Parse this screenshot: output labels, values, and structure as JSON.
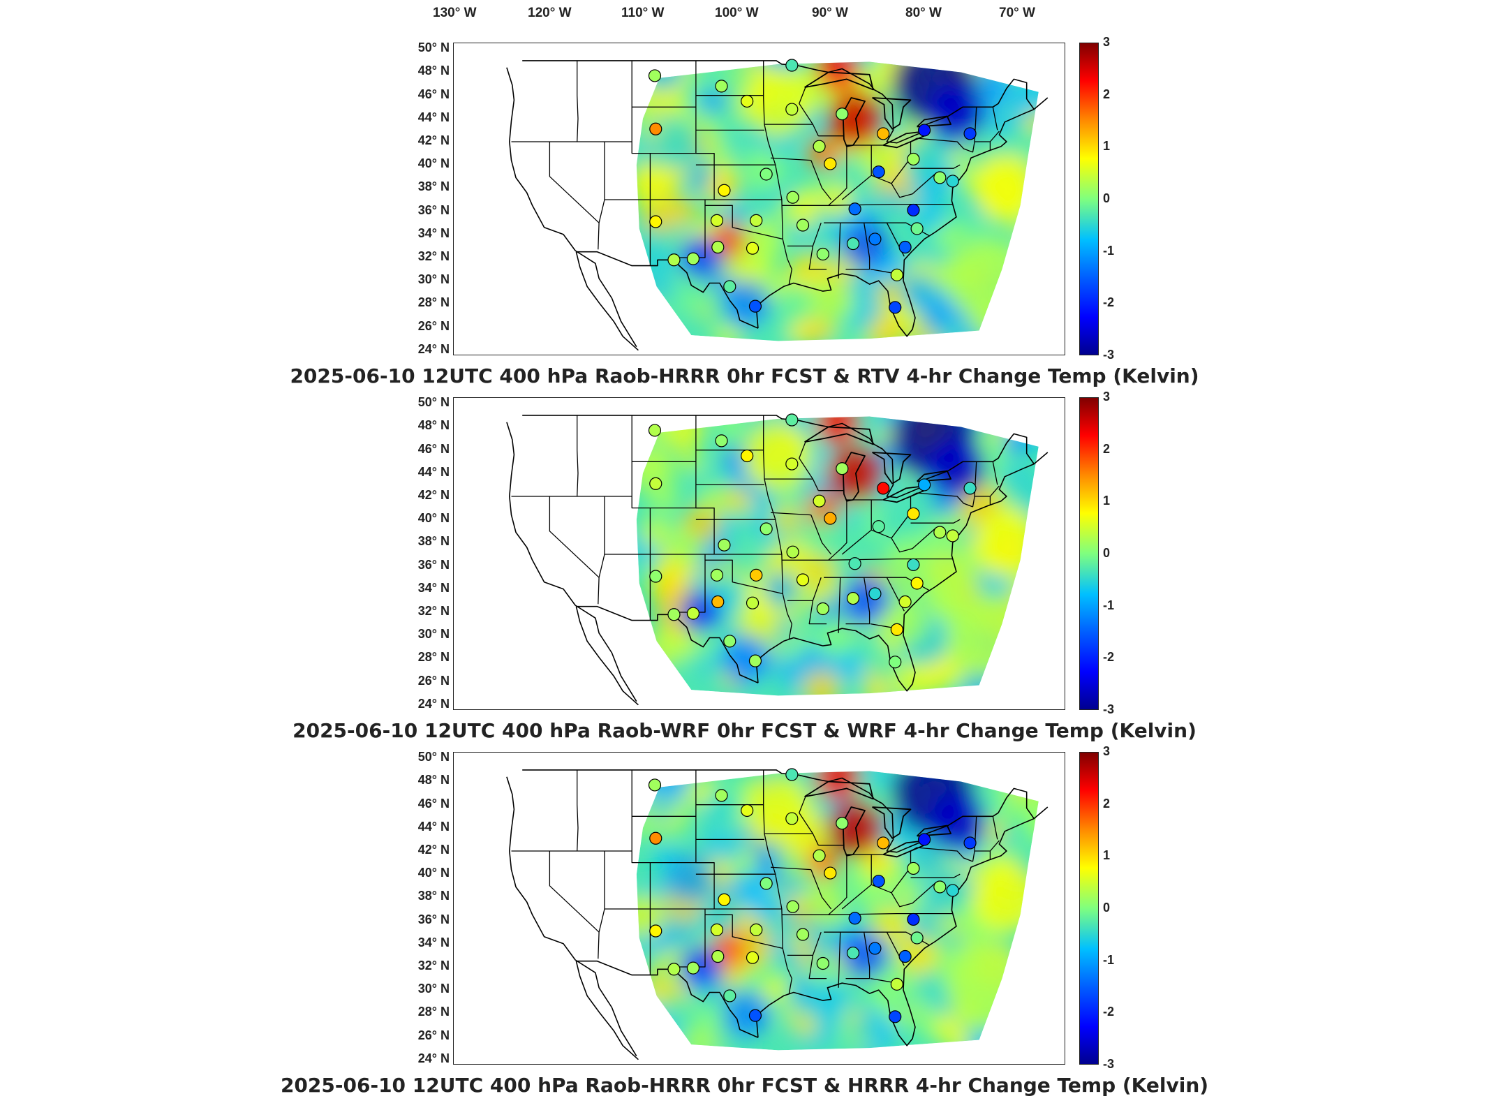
{
  "longitude_labels": [
    "130° W",
    "120° W",
    "110° W",
    "100° W",
    "90° W",
    "80° W",
    "70° W"
  ],
  "latitude_labels": [
    "50° N",
    "48° N",
    "46° N",
    "44° N",
    "42° N",
    "40° N",
    "38° N",
    "36° N",
    "34° N",
    "32° N",
    "30° N",
    "28° N",
    "26° N",
    "24° N"
  ],
  "colorbar_ticks": [
    "3",
    "2",
    "1",
    "0",
    "-1",
    "-2",
    "-3"
  ],
  "colormap": [
    "#800000",
    "#ff0000",
    "#ff8c00",
    "#ffff00",
    "#7fff7f",
    "#00c0ff",
    "#0060ff",
    "#0000ff",
    "#00008f"
  ],
  "panels": [
    {
      "title": "2025-06-10 12UTC 400 hPa Raob-HRRR 0hr FCST & RTV 4-hr Change Temp (Kelvin)",
      "stations": [
        {
          "lon": -108.5,
          "lat": 47.7,
          "value": 0.2
        },
        {
          "lon": -101.2,
          "lat": 46.8,
          "value": 0.2
        },
        {
          "lon": -98.4,
          "lat": 45.5,
          "value": 0.6
        },
        {
          "lon": -93.5,
          "lat": 48.6,
          "value": -0.3
        },
        {
          "lon": -93.5,
          "lat": 44.8,
          "value": 0.4
        },
        {
          "lon": -108.4,
          "lat": 43.1,
          "value": 1.5
        },
        {
          "lon": -88.0,
          "lat": 44.4,
          "value": 0.1
        },
        {
          "lon": -83.5,
          "lat": 42.7,
          "value": 1.2
        },
        {
          "lon": -79.0,
          "lat": 43.0,
          "value": -2.1
        },
        {
          "lon": -74.0,
          "lat": 42.7,
          "value": -1.8
        },
        {
          "lon": -90.5,
          "lat": 41.6,
          "value": 0.3
        },
        {
          "lon": -89.3,
          "lat": 40.1,
          "value": 0.9
        },
        {
          "lon": -84.0,
          "lat": 39.4,
          "value": -1.6
        },
        {
          "lon": -80.2,
          "lat": 40.5,
          "value": 0.2
        },
        {
          "lon": -77.3,
          "lat": 38.9,
          "value": 0.1
        },
        {
          "lon": -96.3,
          "lat": 39.2,
          "value": 0.0
        },
        {
          "lon": -100.9,
          "lat": 37.8,
          "value": 0.8
        },
        {
          "lon": -93.4,
          "lat": 37.2,
          "value": 0.2
        },
        {
          "lon": -86.6,
          "lat": 36.2,
          "value": -1.4
        },
        {
          "lon": -80.2,
          "lat": 36.1,
          "value": -1.9
        },
        {
          "lon": -108.4,
          "lat": 35.1,
          "value": 0.8
        },
        {
          "lon": -97.4,
          "lat": 35.2,
          "value": 0.4
        },
        {
          "lon": -101.7,
          "lat": 35.2,
          "value": 0.5
        },
        {
          "lon": -92.3,
          "lat": 34.8,
          "value": 0.2
        },
        {
          "lon": -86.8,
          "lat": 33.2,
          "value": -0.3
        },
        {
          "lon": -84.4,
          "lat": 33.6,
          "value": -1.3
        },
        {
          "lon": -81.1,
          "lat": 32.9,
          "value": -1.5
        },
        {
          "lon": -90.1,
          "lat": 32.3,
          "value": 0.1
        },
        {
          "lon": -101.6,
          "lat": 32.9,
          "value": 0.3
        },
        {
          "lon": -104.3,
          "lat": 31.9,
          "value": 0.2
        },
        {
          "lon": -106.4,
          "lat": 31.8,
          "value": 0.3
        },
        {
          "lon": -97.8,
          "lat": 32.8,
          "value": 0.6
        },
        {
          "lon": -79.8,
          "lat": 34.5,
          "value": -0.1
        },
        {
          "lon": -100.3,
          "lat": 29.5,
          "value": -0.2
        },
        {
          "lon": -97.5,
          "lat": 27.8,
          "value": -1.6
        },
        {
          "lon": -82.0,
          "lat": 30.5,
          "value": 0.4
        },
        {
          "lon": -82.2,
          "lat": 27.7,
          "value": -1.7
        },
        {
          "lon": -75.9,
          "lat": 38.6,
          "value": -0.5
        }
      ]
    },
    {
      "title": "2025-06-10 12UTC 400 hPa Raob-WRF 0hr FCST & WRF 4-hr Change Temp (Kelvin)",
      "stations": [
        {
          "lon": -108.5,
          "lat": 47.7,
          "value": 0.3
        },
        {
          "lon": -101.2,
          "lat": 46.8,
          "value": 0.1
        },
        {
          "lon": -98.4,
          "lat": 45.5,
          "value": 0.8
        },
        {
          "lon": -93.5,
          "lat": 48.6,
          "value": -0.2
        },
        {
          "lon": -93.5,
          "lat": 44.8,
          "value": 0.5
        },
        {
          "lon": -108.4,
          "lat": 43.1,
          "value": 0.4
        },
        {
          "lon": -88.0,
          "lat": 44.4,
          "value": 0.2
        },
        {
          "lon": -83.5,
          "lat": 42.7,
          "value": 2.2
        },
        {
          "lon": -79.0,
          "lat": 43.0,
          "value": -0.9
        },
        {
          "lon": -74.0,
          "lat": 42.7,
          "value": -0.4
        },
        {
          "lon": -90.5,
          "lat": 41.6,
          "value": 0.5
        },
        {
          "lon": -89.3,
          "lat": 40.1,
          "value": 1.3
        },
        {
          "lon": -84.0,
          "lat": 39.4,
          "value": -0.2
        },
        {
          "lon": -80.2,
          "lat": 40.5,
          "value": 0.9
        },
        {
          "lon": -77.3,
          "lat": 38.9,
          "value": 0.3
        },
        {
          "lon": -96.3,
          "lat": 39.2,
          "value": 0.1
        },
        {
          "lon": -100.9,
          "lat": 37.8,
          "value": 0.2
        },
        {
          "lon": -93.4,
          "lat": 37.2,
          "value": 0.3
        },
        {
          "lon": -86.6,
          "lat": 36.2,
          "value": -0.3
        },
        {
          "lon": -80.2,
          "lat": 36.1,
          "value": -0.4
        },
        {
          "lon": -108.4,
          "lat": 35.1,
          "value": 0.1
        },
        {
          "lon": -97.4,
          "lat": 35.2,
          "value": 1.1
        },
        {
          "lon": -101.7,
          "lat": 35.2,
          "value": 0.2
        },
        {
          "lon": -92.3,
          "lat": 34.8,
          "value": 0.6
        },
        {
          "lon": -86.8,
          "lat": 33.2,
          "value": 0.3
        },
        {
          "lon": -84.4,
          "lat": 33.6,
          "value": -0.5
        },
        {
          "lon": -81.1,
          "lat": 32.9,
          "value": 0.5
        },
        {
          "lon": -90.1,
          "lat": 32.3,
          "value": 0.2
        },
        {
          "lon": -101.6,
          "lat": 32.9,
          "value": 1.2
        },
        {
          "lon": -104.3,
          "lat": 31.9,
          "value": 0.4
        },
        {
          "lon": -106.4,
          "lat": 31.8,
          "value": 0.2
        },
        {
          "lon": -97.8,
          "lat": 32.8,
          "value": 0.4
        },
        {
          "lon": -79.8,
          "lat": 34.5,
          "value": 0.8
        },
        {
          "lon": -100.3,
          "lat": 29.5,
          "value": 0.1
        },
        {
          "lon": -97.5,
          "lat": 27.8,
          "value": 0.2
        },
        {
          "lon": -82.0,
          "lat": 30.5,
          "value": 0.9
        },
        {
          "lon": -82.2,
          "lat": 27.7,
          "value": 0.0
        },
        {
          "lon": -75.9,
          "lat": 38.6,
          "value": 0.4
        }
      ]
    },
    {
      "title": "2025-06-10 12UTC 400 hPa Raob-HRRR 0hr FCST & HRRR 4-hr Change Temp (Kelvin)",
      "stations": [
        {
          "lon": -108.5,
          "lat": 47.7,
          "value": 0.2
        },
        {
          "lon": -101.2,
          "lat": 46.8,
          "value": 0.2
        },
        {
          "lon": -98.4,
          "lat": 45.5,
          "value": 0.6
        },
        {
          "lon": -93.5,
          "lat": 48.6,
          "value": -0.3
        },
        {
          "lon": -93.5,
          "lat": 44.8,
          "value": 0.4
        },
        {
          "lon": -108.4,
          "lat": 43.1,
          "value": 1.5
        },
        {
          "lon": -88.0,
          "lat": 44.4,
          "value": 0.1
        },
        {
          "lon": -83.5,
          "lat": 42.7,
          "value": 1.2
        },
        {
          "lon": -79.0,
          "lat": 43.0,
          "value": -2.1
        },
        {
          "lon": -74.0,
          "lat": 42.7,
          "value": -1.8
        },
        {
          "lon": -90.5,
          "lat": 41.6,
          "value": 0.3
        },
        {
          "lon": -89.3,
          "lat": 40.1,
          "value": 0.9
        },
        {
          "lon": -84.0,
          "lat": 39.4,
          "value": -1.6
        },
        {
          "lon": -80.2,
          "lat": 40.5,
          "value": 0.2
        },
        {
          "lon": -77.3,
          "lat": 38.9,
          "value": 0.1
        },
        {
          "lon": -96.3,
          "lat": 39.2,
          "value": 0.0
        },
        {
          "lon": -100.9,
          "lat": 37.8,
          "value": 0.8
        },
        {
          "lon": -93.4,
          "lat": 37.2,
          "value": 0.2
        },
        {
          "lon": -86.6,
          "lat": 36.2,
          "value": -1.4
        },
        {
          "lon": -80.2,
          "lat": 36.1,
          "value": -1.9
        },
        {
          "lon": -108.4,
          "lat": 35.1,
          "value": 0.8
        },
        {
          "lon": -97.4,
          "lat": 35.2,
          "value": 0.4
        },
        {
          "lon": -101.7,
          "lat": 35.2,
          "value": 0.5
        },
        {
          "lon": -92.3,
          "lat": 34.8,
          "value": 0.2
        },
        {
          "lon": -86.8,
          "lat": 33.2,
          "value": -0.3
        },
        {
          "lon": -84.4,
          "lat": 33.6,
          "value": -1.3
        },
        {
          "lon": -81.1,
          "lat": 32.9,
          "value": -1.5
        },
        {
          "lon": -90.1,
          "lat": 32.3,
          "value": 0.1
        },
        {
          "lon": -101.6,
          "lat": 32.9,
          "value": 0.3
        },
        {
          "lon": -104.3,
          "lat": 31.9,
          "value": 0.2
        },
        {
          "lon": -106.4,
          "lat": 31.8,
          "value": 0.3
        },
        {
          "lon": -97.8,
          "lat": 32.8,
          "value": 0.6
        },
        {
          "lon": -79.8,
          "lat": 34.5,
          "value": -0.1
        },
        {
          "lon": -100.3,
          "lat": 29.5,
          "value": -0.2
        },
        {
          "lon": -97.5,
          "lat": 27.8,
          "value": -1.6
        },
        {
          "lon": -82.0,
          "lat": 30.5,
          "value": 0.4
        },
        {
          "lon": -82.2,
          "lat": 27.7,
          "value": -1.7
        },
        {
          "lon": -75.9,
          "lat": 38.6,
          "value": -0.5
        }
      ]
    }
  ]
}
